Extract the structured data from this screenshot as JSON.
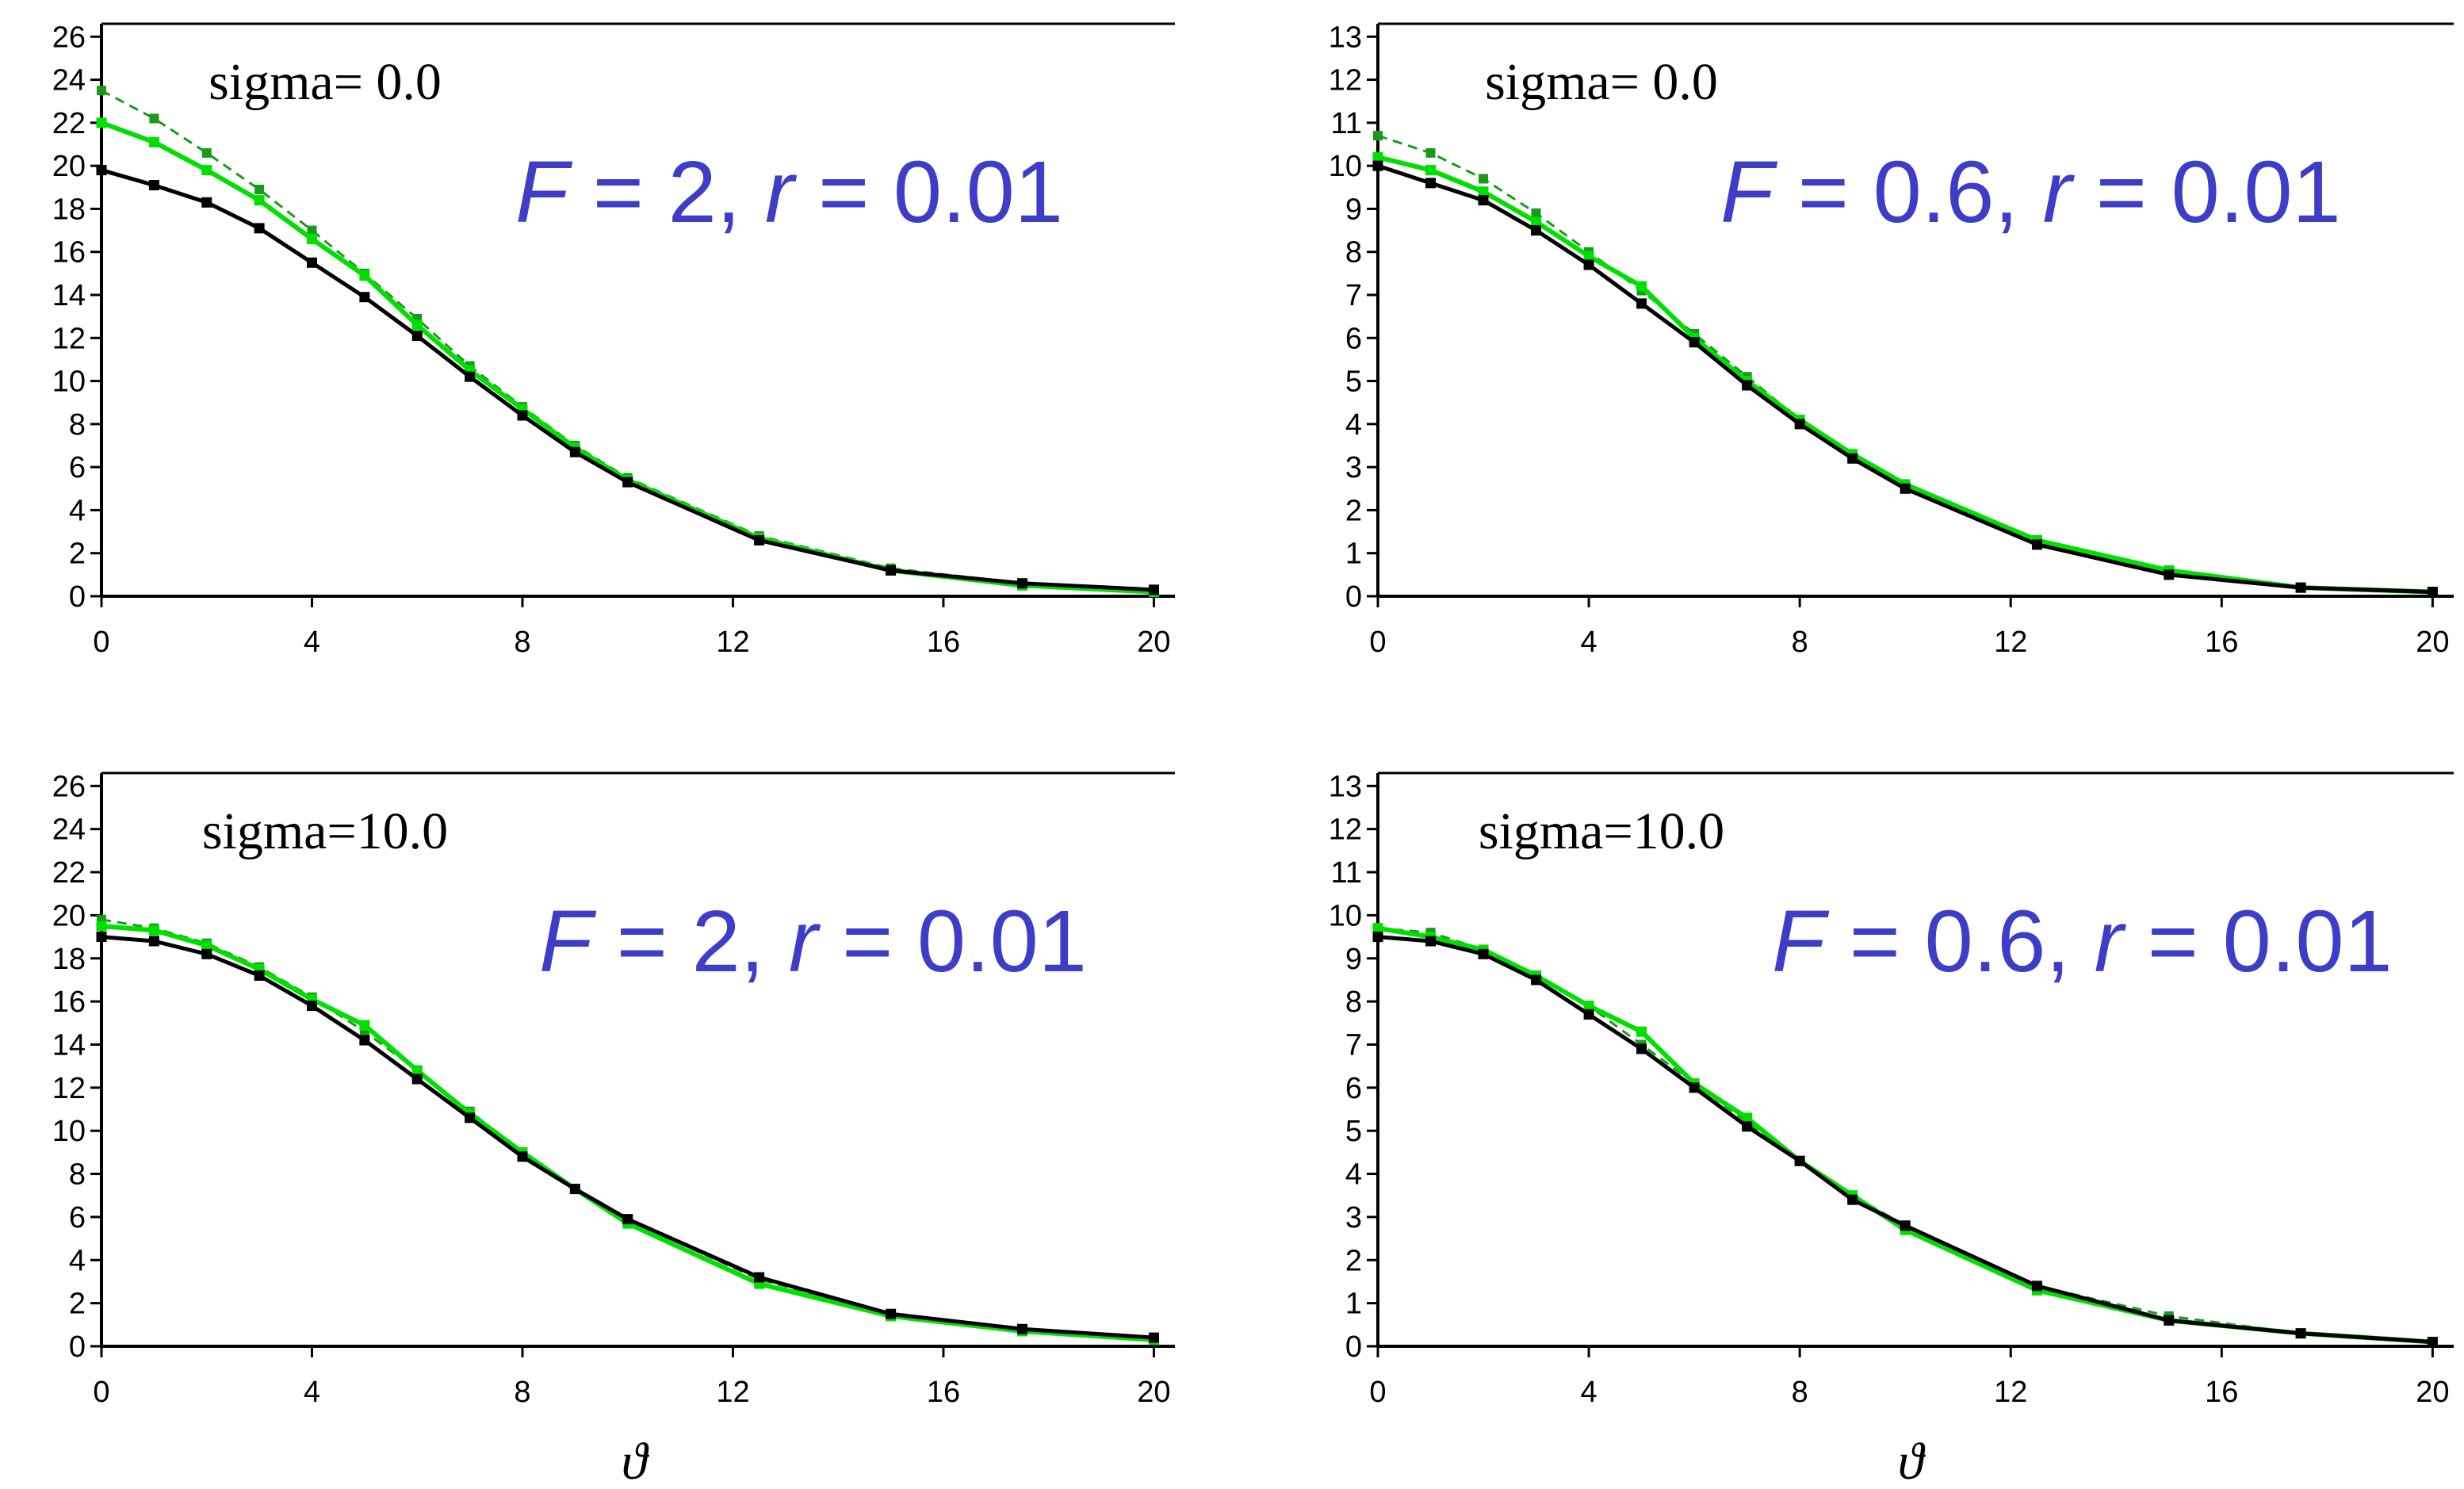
{
  "figure": {
    "x_axis_symbol": "ϑ"
  },
  "series_style": {
    "black_solid": "#000000",
    "green_solid": "#00e000",
    "green_dashed": "#1a9a1a"
  },
  "chart_data": [
    {
      "type": "line",
      "annotation_sigma": "sigma= 0.0",
      "annotation_params": {
        "F_symbol": "F",
        "F_value": " = 2, ",
        "r_symbol": "r",
        "r_value": " = 0.01"
      },
      "xlabel": "",
      "xlim": [
        0,
        20.4
      ],
      "ylim": [
        0,
        26.6
      ],
      "xticks": [
        0,
        4,
        8,
        12,
        16,
        20
      ],
      "yticks": [
        0,
        2,
        4,
        6,
        8,
        10,
        12,
        14,
        16,
        18,
        20,
        22,
        24,
        26
      ],
      "series": [
        {
          "name": "green dashed",
          "x": [
            0,
            1,
            2,
            3,
            4,
            5,
            6,
            7,
            8,
            9,
            10,
            12.5,
            15,
            17.5,
            20
          ],
          "y": [
            23.5,
            22.2,
            20.6,
            18.9,
            17.0,
            15.0,
            12.9,
            10.7,
            8.8,
            7.0,
            5.5,
            2.8,
            1.3,
            0.6,
            0.3
          ]
        },
        {
          "name": "green solid",
          "x": [
            0,
            1,
            2,
            3,
            4,
            5,
            6,
            7,
            8,
            9,
            10,
            12.5,
            15,
            17.5,
            20
          ],
          "y": [
            22.0,
            21.1,
            19.8,
            18.4,
            16.6,
            14.9,
            12.6,
            10.5,
            8.7,
            6.9,
            5.4,
            2.7,
            1.2,
            0.5,
            0.2
          ]
        },
        {
          "name": "black solid",
          "x": [
            0,
            1,
            2,
            3,
            4,
            5,
            6,
            7,
            8,
            9,
            10,
            12.5,
            15,
            17.5,
            20
          ],
          "y": [
            19.8,
            19.1,
            18.3,
            17.1,
            15.5,
            13.9,
            12.1,
            10.2,
            8.4,
            6.7,
            5.3,
            2.6,
            1.2,
            0.6,
            0.3
          ]
        }
      ]
    },
    {
      "type": "line",
      "annotation_sigma": "sigma= 0.0",
      "annotation_params": {
        "F_symbol": "F",
        "F_value": " = 0.6, ",
        "r_symbol": "r",
        "r_value": " = 0.01"
      },
      "xlabel": "",
      "xlim": [
        0,
        20.4
      ],
      "ylim": [
        0,
        13.3
      ],
      "xticks": [
        0,
        4,
        8,
        12,
        16,
        20
      ],
      "yticks": [
        0,
        1,
        2,
        3,
        4,
        5,
        6,
        7,
        8,
        9,
        10,
        11,
        12,
        13
      ],
      "series": [
        {
          "name": "green dashed",
          "x": [
            0,
            1,
            2,
            3,
            4,
            5,
            6,
            7,
            8,
            9,
            10,
            12.5,
            15,
            17.5,
            20
          ],
          "y": [
            10.7,
            10.3,
            9.7,
            8.9,
            8.0,
            7.1,
            6.1,
            5.1,
            4.1,
            3.3,
            2.6,
            1.3,
            0.6,
            0.2,
            0.1
          ]
        },
        {
          "name": "green solid",
          "x": [
            0,
            1,
            2,
            3,
            4,
            5,
            6,
            7,
            8,
            9,
            10,
            12.5,
            15,
            17.5,
            20
          ],
          "y": [
            10.2,
            9.9,
            9.4,
            8.7,
            7.9,
            7.2,
            6.0,
            5.0,
            4.1,
            3.3,
            2.6,
            1.3,
            0.6,
            0.2,
            0.1
          ]
        },
        {
          "name": "black solid",
          "x": [
            0,
            1,
            2,
            3,
            4,
            5,
            6,
            7,
            8,
            9,
            10,
            12.5,
            15,
            17.5,
            20
          ],
          "y": [
            10.0,
            9.6,
            9.2,
            8.5,
            7.7,
            6.8,
            5.9,
            4.9,
            4.0,
            3.2,
            2.5,
            1.2,
            0.5,
            0.2,
            0.1
          ]
        }
      ]
    },
    {
      "type": "line",
      "annotation_sigma": "sigma=10.0",
      "annotation_params": {
        "F_symbol": "F",
        "F_value": " = 2, ",
        "r_symbol": "r",
        "r_value": " = 0.01"
      },
      "xlabel": "ϑ",
      "xlim": [
        0,
        20.4
      ],
      "ylim": [
        0,
        26.6
      ],
      "xticks": [
        0,
        4,
        8,
        12,
        16,
        20
      ],
      "yticks": [
        0,
        2,
        4,
        6,
        8,
        10,
        12,
        14,
        16,
        18,
        20,
        22,
        24,
        26
      ],
      "series": [
        {
          "name": "green dashed",
          "x": [
            0,
            1,
            2,
            3,
            4,
            5,
            6,
            7,
            8,
            9,
            10,
            12.5,
            15,
            17.5,
            20
          ],
          "y": [
            19.8,
            19.4,
            18.7,
            17.6,
            16.2,
            14.6,
            12.8,
            10.9,
            9.0,
            7.3,
            5.9,
            3.1,
            1.5,
            0.8,
            0.4
          ]
        },
        {
          "name": "green solid",
          "x": [
            0,
            1,
            2,
            3,
            4,
            5,
            6,
            7,
            8,
            9,
            10,
            12.5,
            15,
            17.5,
            20
          ],
          "y": [
            19.5,
            19.3,
            18.6,
            17.5,
            16.1,
            14.9,
            12.8,
            10.8,
            9.0,
            7.3,
            5.7,
            2.9,
            1.4,
            0.7,
            0.3
          ]
        },
        {
          "name": "black solid",
          "x": [
            0,
            1,
            2,
            3,
            4,
            5,
            6,
            7,
            8,
            9,
            10,
            12.5,
            15,
            17.5,
            20
          ],
          "y": [
            19.0,
            18.8,
            18.2,
            17.2,
            15.8,
            14.2,
            12.4,
            10.6,
            8.8,
            7.3,
            5.9,
            3.2,
            1.5,
            0.8,
            0.4
          ]
        }
      ]
    },
    {
      "type": "line",
      "annotation_sigma": "sigma=10.0",
      "annotation_params": {
        "F_symbol": "F",
        "F_value": " = 0.6, ",
        "r_symbol": "r",
        "r_value": " = 0.01"
      },
      "xlabel": "ϑ",
      "xlim": [
        0,
        20.4
      ],
      "ylim": [
        0,
        13.3
      ],
      "xticks": [
        0,
        4,
        8,
        12,
        16,
        20
      ],
      "yticks": [
        0,
        1,
        2,
        3,
        4,
        5,
        6,
        7,
        8,
        9,
        10,
        11,
        12,
        13
      ],
      "series": [
        {
          "name": "green dashed",
          "x": [
            0,
            1,
            2,
            3,
            4,
            5,
            6,
            7,
            8,
            9,
            10,
            12.5,
            15,
            17.5,
            20
          ],
          "y": [
            9.7,
            9.6,
            9.2,
            8.6,
            7.9,
            7.0,
            6.1,
            5.2,
            4.3,
            3.5,
            2.8,
            1.4,
            0.7,
            0.3,
            0.1
          ]
        },
        {
          "name": "green solid",
          "x": [
            0,
            1,
            2,
            3,
            4,
            5,
            6,
            7,
            8,
            9,
            10,
            12.5,
            15,
            17.5,
            20
          ],
          "y": [
            9.7,
            9.5,
            9.2,
            8.6,
            7.9,
            7.3,
            6.1,
            5.3,
            4.3,
            3.5,
            2.7,
            1.3,
            0.6,
            0.3,
            0.1
          ]
        },
        {
          "name": "black solid",
          "x": [
            0,
            1,
            2,
            3,
            4,
            5,
            6,
            7,
            8,
            9,
            10,
            12.5,
            15,
            17.5,
            20
          ],
          "y": [
            9.5,
            9.4,
            9.1,
            8.5,
            7.7,
            6.9,
            6.0,
            5.1,
            4.3,
            3.4,
            2.8,
            1.4,
            0.6,
            0.3,
            0.1
          ]
        }
      ]
    }
  ]
}
